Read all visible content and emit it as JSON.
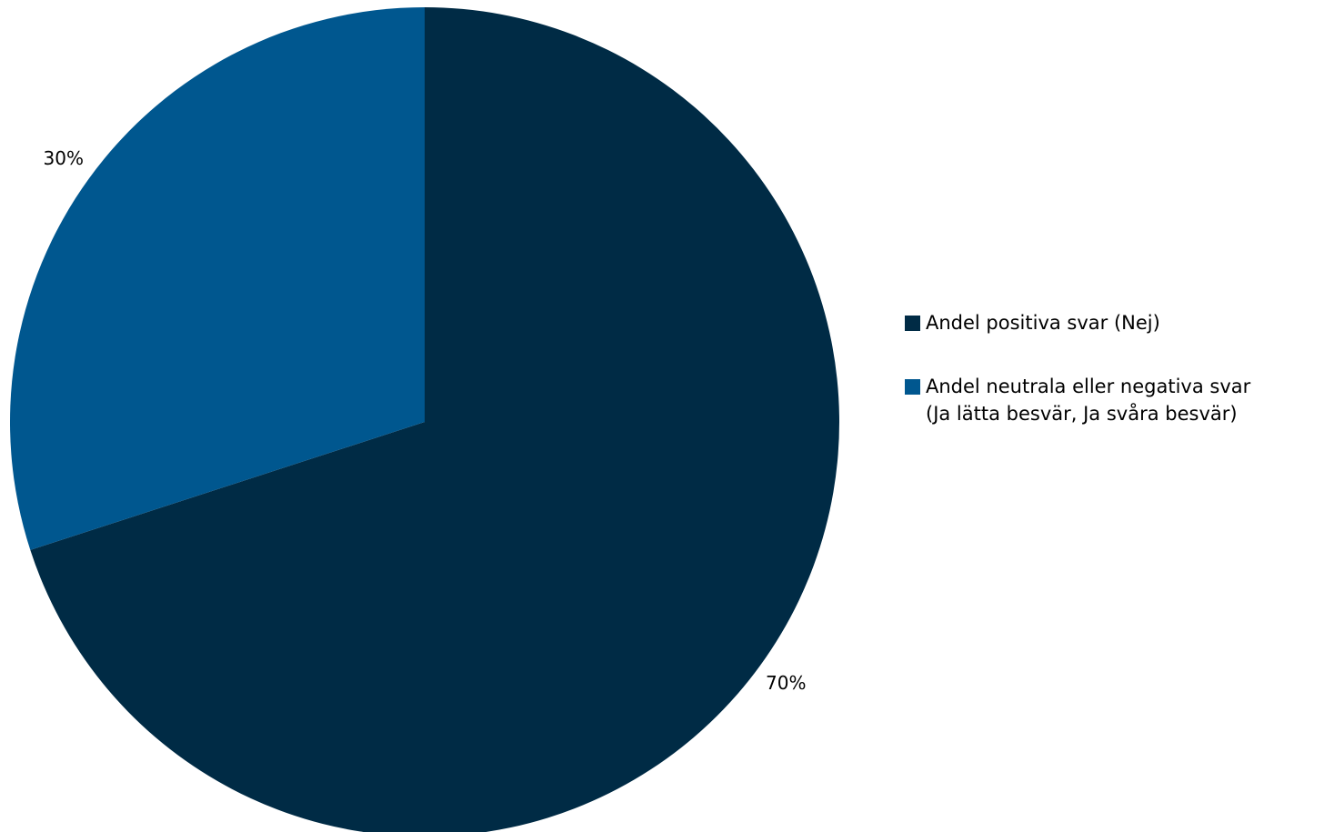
{
  "chart_data": {
    "type": "pie",
    "categories": [
      "Andel positiva svar (Nej)",
      "Andel neutrala eller negativa svar\n(Ja lätta besvär, Ja svåra besvär)"
    ],
    "values": [
      70,
      30
    ],
    "data_labels": [
      "70%",
      "30%"
    ],
    "colors": [
      "#002b45",
      "#00578f"
    ],
    "start_angle_deg": 0,
    "direction": "clockwise",
    "legend_position": "right"
  }
}
